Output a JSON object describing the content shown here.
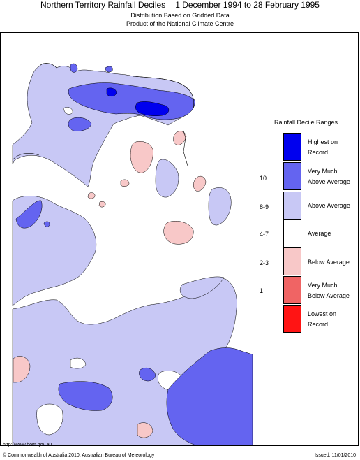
{
  "header": {
    "title_left": "Northern Territory Rainfall Deciles",
    "title_right": "1 December 1994 to 28 February 1995",
    "subtitle_1": "Distribution Based on Gridded Data",
    "subtitle_2": "Product of the National Climate Centre"
  },
  "legend": {
    "title": "Rainfall Decile Ranges",
    "items": [
      {
        "label_1": "Highest on",
        "label_2": "Record",
        "range": "",
        "color": "#0000ee"
      },
      {
        "label_1": "Very Much",
        "label_2": "Above Average",
        "range": "10",
        "color": "#6464f0"
      },
      {
        "label_1": "Above Average",
        "label_2": "",
        "range": "8-9",
        "color": "#c8c8f5"
      },
      {
        "label_1": "Average",
        "label_2": "",
        "range": "4-7",
        "color": "#ffffff"
      },
      {
        "label_1": "Below Average",
        "label_2": "",
        "range": "2-3",
        "color": "#f8c8c8"
      },
      {
        "label_1": "Very Much",
        "label_2": "Below Average",
        "range": "1",
        "color": "#f06464"
      },
      {
        "label_1": "Lowest on",
        "label_2": "Record",
        "range": "",
        "color": "#ff1414"
      }
    ]
  },
  "footer": {
    "url": "http://www.bom.gov.au",
    "copyright": "© Commonwealth of Australia 2010, Australian Bureau of Meteorology",
    "issued": "Issued: 11/01/2010"
  },
  "map_colors": {
    "above_average": "#c8c8f5",
    "very_much_above": "#6464f0",
    "highest_on_record": "#0000ee",
    "below_average": "#f8c8c8",
    "outline": "#000000"
  }
}
